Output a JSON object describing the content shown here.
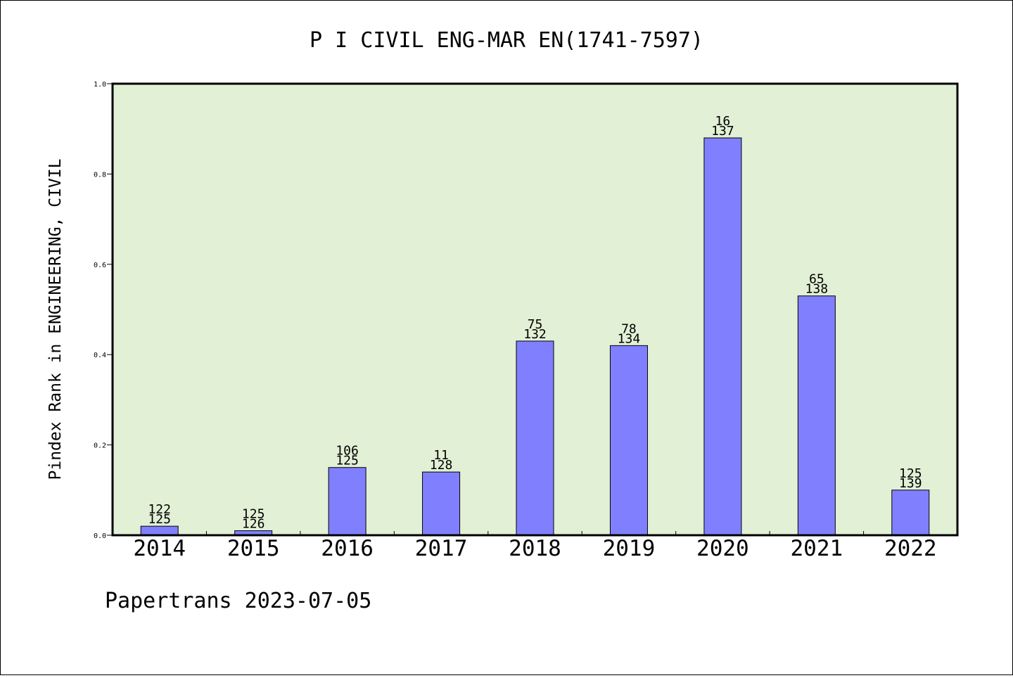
{
  "chart_data": {
    "type": "bar",
    "title": "P I CIVIL ENG-MAR EN(1741-7597)",
    "xlabel": "",
    "ylabel": "Pindex Rank in ENGINEERING, CIVIL",
    "categories": [
      "2014",
      "2015",
      "2016",
      "2017",
      "2018",
      "2019",
      "2020",
      "2021",
      "2022"
    ],
    "values": [
      0.02,
      0.01,
      0.15,
      0.14,
      0.43,
      0.42,
      0.88,
      0.53,
      0.1
    ],
    "bar_labels_top": [
      "122",
      "125",
      "106",
      "11",
      "75",
      "78",
      "16",
      "65",
      "125"
    ],
    "bar_labels_bottom": [
      "125",
      "126",
      "125",
      "128",
      "132",
      "134",
      "137",
      "138",
      "139"
    ],
    "ylim": [
      0,
      1.0
    ],
    "yticks": [
      "0.0",
      "0.2",
      "0.4",
      "0.6",
      "0.8",
      "1.0"
    ],
    "ytick_values": [
      0,
      0.2,
      0.4,
      0.6,
      0.8,
      1.0
    ],
    "grid": false,
    "legend": "none",
    "colors": {
      "plot_background": "#e2f0d6",
      "bar_fill": "#8080ff",
      "bar_stroke": "#000000"
    }
  },
  "footer": {
    "text": "Papertrans 2023-07-05"
  }
}
